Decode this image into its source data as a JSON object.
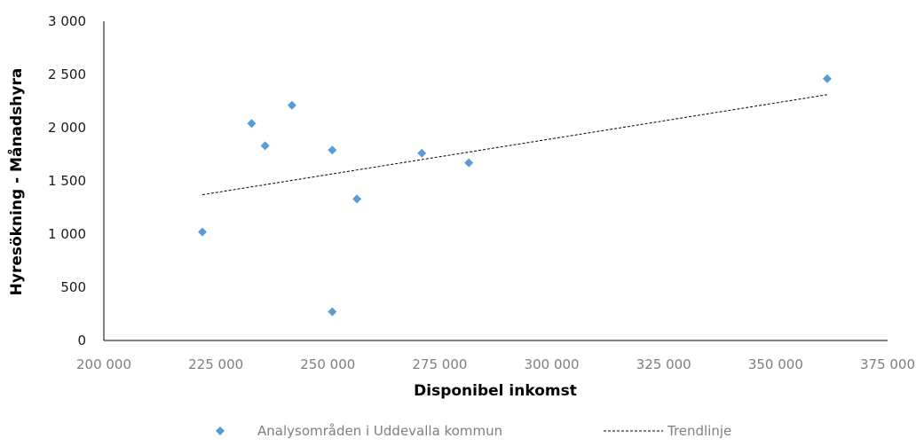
{
  "chart_data": {
    "type": "scatter",
    "xlabel": "Disponibel inkomst",
    "ylabel": "Hyresökning - Månadshyra",
    "xlim": [
      200000,
      375000
    ],
    "ylim": [
      0,
      3000
    ],
    "x_ticks": [
      200000,
      225000,
      250000,
      275000,
      300000,
      325000,
      350000,
      375000
    ],
    "x_tick_labels": [
      "200 000",
      "225 000",
      "250 000",
      "275 000",
      "300 000",
      "325 000",
      "350 000",
      "375 000"
    ],
    "y_ticks": [
      0,
      500,
      1000,
      1500,
      2000,
      2500,
      3000
    ],
    "y_tick_labels": [
      "0",
      "500",
      "1 000",
      "1 500",
      "2 000",
      "2 500",
      "3 000"
    ],
    "grid": false,
    "legend_position": "bottom",
    "series": [
      {
        "name": "Analysområden i Uddevalla kommun",
        "marker": "diamond",
        "color": "#5b9bd5",
        "points": [
          {
            "x": 222000,
            "y": 1020
          },
          {
            "x": 233000,
            "y": 2040
          },
          {
            "x": 236000,
            "y": 1830
          },
          {
            "x": 242000,
            "y": 2210
          },
          {
            "x": 251000,
            "y": 1790
          },
          {
            "x": 251000,
            "y": 270
          },
          {
            "x": 256500,
            "y": 1330
          },
          {
            "x": 271000,
            "y": 1760
          },
          {
            "x": 281500,
            "y": 1670
          },
          {
            "x": 361500,
            "y": 2460
          }
        ]
      },
      {
        "name": "Trendlinje",
        "type": "line",
        "dashed": true,
        "color": "#000000",
        "points": [
          {
            "x": 222000,
            "y": 1370
          },
          {
            "x": 361500,
            "y": 2310
          }
        ]
      }
    ]
  }
}
